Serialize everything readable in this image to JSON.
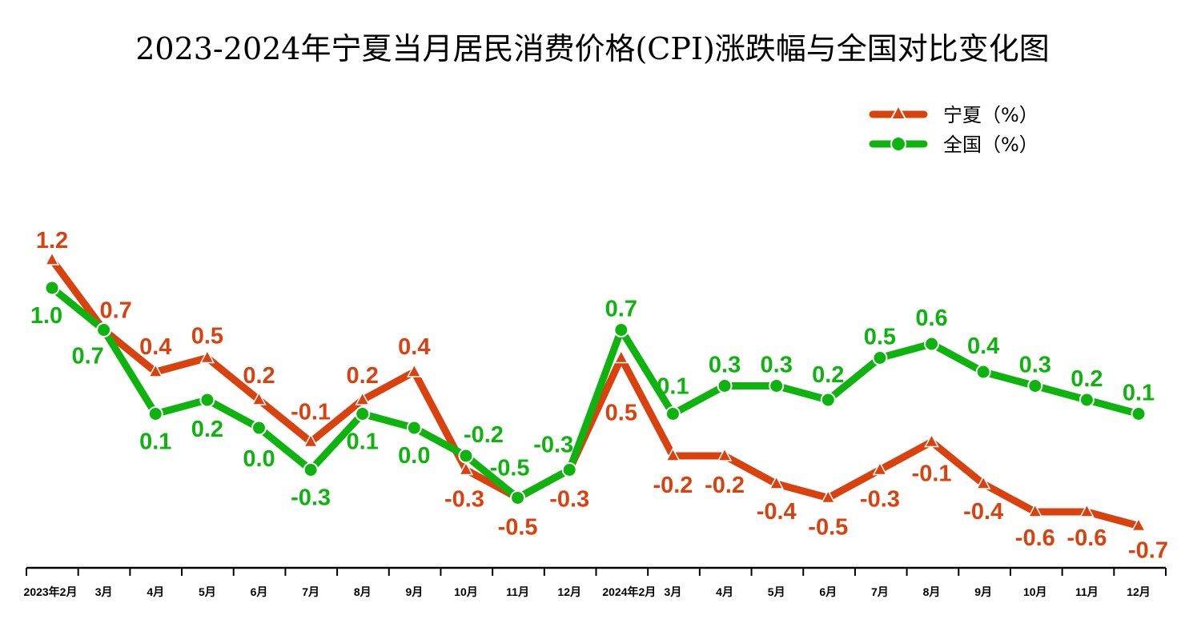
{
  "chart_data": {
    "type": "line",
    "title": "2023-2024年宁夏当月居民消费价格(CPI)涨跌幅与全国对比变化图",
    "categories": [
      "2023年2月",
      "3月",
      "4月",
      "5月",
      "6月",
      "7月",
      "8月",
      "9月",
      "10月",
      "11月",
      "12月",
      "2024年2月",
      "3月",
      "4月",
      "5月",
      "6月",
      "7月",
      "8月",
      "9月",
      "10月",
      "11月",
      "12月"
    ],
    "series": [
      {
        "name": "宁夏（%）",
        "color": "#d9420f",
        "marker": "triangle",
        "values": [
          1.2,
          0.7,
          0.4,
          0.5,
          0.2,
          -0.1,
          0.2,
          0.4,
          -0.3,
          -0.5,
          -0.3,
          0.5,
          -0.2,
          -0.2,
          -0.4,
          -0.5,
          -0.3,
          -0.1,
          -0.4,
          -0.6,
          -0.6,
          -0.7
        ]
      },
      {
        "name": "全国（%）",
        "color": "#0fb30f",
        "marker": "circle",
        "values": [
          1.0,
          0.7,
          0.1,
          0.2,
          0.0,
          -0.3,
          0.1,
          0.0,
          -0.2,
          -0.5,
          -0.3,
          0.7,
          0.1,
          0.3,
          0.3,
          0.2,
          0.5,
          0.6,
          0.4,
          0.3,
          0.2,
          0.1
        ]
      }
    ],
    "legend": "top-right",
    "grid": false,
    "data_labels": true
  }
}
